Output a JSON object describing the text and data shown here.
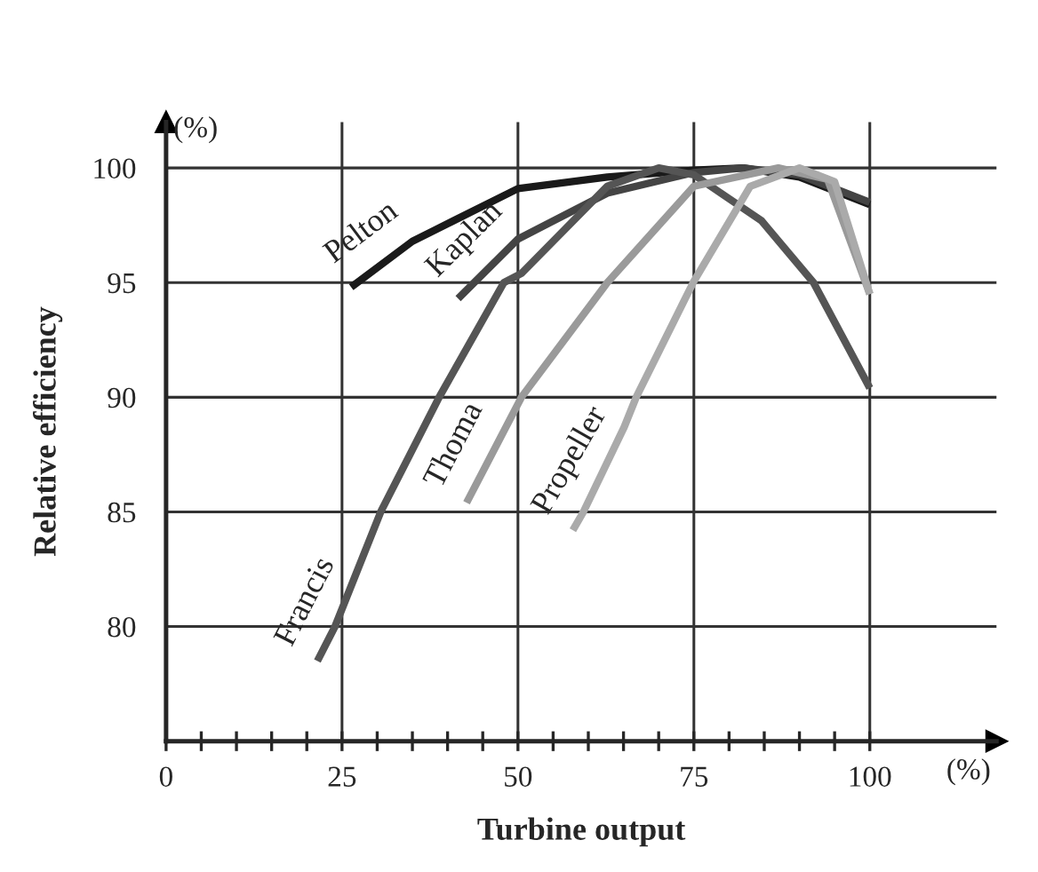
{
  "chart_data": {
    "type": "line",
    "xlabel": "Turbine output",
    "ylabel": "Relative efficiency",
    "annotations": [
      "(%)",
      "(%)"
    ],
    "series": [
      {
        "name": "Pelton",
        "color": "#1a1a1a",
        "x": [
          26.3,
          35,
          50,
          62.7,
          75,
          82,
          90,
          100
        ],
        "values": [
          94.8,
          96.8,
          99.1,
          99.6,
          99.9,
          100,
          99.6,
          98.4
        ]
      },
      {
        "name": "Kaplan",
        "color": "#444444",
        "x": [
          41.5,
          50,
          62.7,
          75,
          82,
          90,
          100
        ],
        "values": [
          94.3,
          96.9,
          98.9,
          99.8,
          100,
          99.7,
          98.5
        ]
      },
      {
        "name": "Francis",
        "color": "#555555",
        "x": [
          21.5,
          24,
          30.5,
          38.8,
          48,
          50.5,
          62.7,
          70,
          75,
          84.6,
          92,
          100
        ],
        "values": [
          78.5,
          80,
          85,
          90,
          95,
          95.4,
          99.2,
          100,
          99.7,
          97.7,
          95,
          90.4
        ]
      },
      {
        "name": "Thoma",
        "color": "#9a9a9a",
        "x": [
          42.7,
          50.5,
          62.7,
          75,
          87,
          94,
          100
        ],
        "values": [
          85.4,
          90,
          95,
          99.2,
          100,
          99.5,
          94.5
        ]
      },
      {
        "name": "Propeller",
        "color": "#aaaaaa",
        "x": [
          57.8,
          59.3,
          65.1,
          66.8,
          74.9,
          83,
          90,
          95,
          100
        ],
        "values": [
          84.2,
          85,
          88.7,
          90,
          95,
          99.2,
          100,
          99.4,
          94.5
        ]
      }
    ],
    "xlim": [
      0,
      118
    ],
    "ylim": [
      75,
      102
    ],
    "xticks": [
      0,
      {
        "value": 5,
        "label": null
      },
      {
        "value": 10,
        "label": null
      },
      {
        "value": 15,
        "label": null
      },
      {
        "value": 20,
        "label": null
      },
      25,
      {
        "value": 30,
        "label": null
      },
      {
        "value": 35,
        "label": null
      },
      {
        "value": 40,
        "label": null
      },
      {
        "value": 45,
        "label": null
      },
      50,
      {
        "value": 55,
        "label": null
      },
      {
        "value": 60,
        "label": null
      },
      {
        "value": 65,
        "label": null
      },
      {
        "value": 70,
        "label": null
      },
      75,
      {
        "value": 80,
        "label": null
      },
      {
        "value": 85,
        "label": null
      },
      {
        "value": 90,
        "label": null
      },
      {
        "value": 95,
        "label": null
      },
      100
    ],
    "yticks": [
      80,
      85,
      90,
      95,
      100
    ],
    "grid": true,
    "marker": "none",
    "line_style": "solid"
  }
}
